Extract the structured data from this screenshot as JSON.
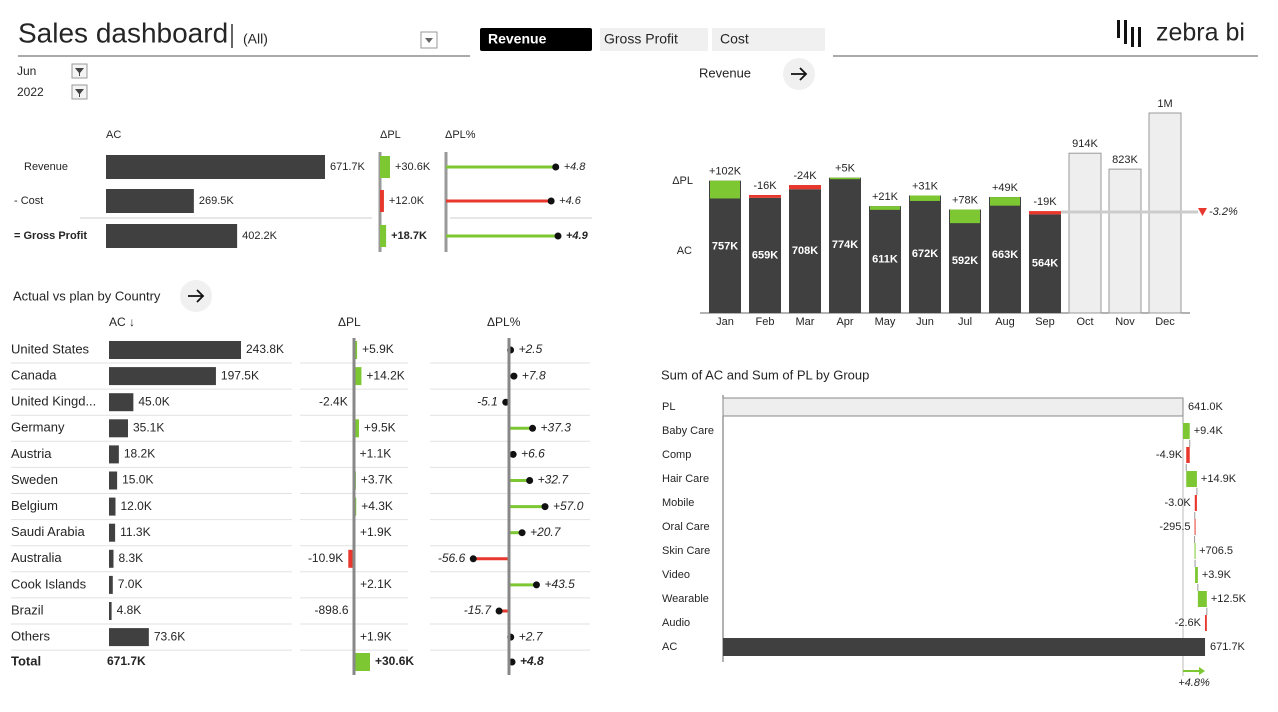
{
  "header": {
    "title": "Sales dashboard",
    "scenario": "(All)",
    "filters": [
      "Jun",
      "2022"
    ],
    "tabs": [
      "Revenue",
      "Gross Profit",
      "Cost"
    ],
    "logo": "zebra bi"
  },
  "chart_data": [
    {
      "type": "kpi-table",
      "columns": [
        "AC",
        "ΔPL",
        "ΔPL%"
      ],
      "categories": [
        "Revenue",
        "- Cost",
        "= Gross Profit"
      ],
      "series": [
        {
          "color": "#404040",
          "values": [
            671700,
            269500,
            402200
          ],
          "value_labels": [
            "671.7K",
            "269.5K",
            "402.2K"
          ]
        },
        {
          "colors": [
            "#7dc832",
            "#e8372c",
            "#7dc832"
          ],
          "values": [
            30600,
            12000,
            18700
          ],
          "value_labels": [
            "+30.6K",
            "+12.0K",
            "+18.7K"
          ]
        },
        {
          "colors": [
            "#7dc832",
            "#e8372c",
            "#7dc832"
          ],
          "values": [
            4.8,
            4.6,
            4.9
          ],
          "value_labels": [
            "+4.8",
            "+4.6",
            "+4.9"
          ]
        }
      ]
    },
    {
      "type": "column-variance",
      "title": "Revenue",
      "categories": [
        "Jan",
        "Feb",
        "Mar",
        "Apr",
        "May",
        "Jun",
        "Jul",
        "Aug",
        "Sep",
        "Oct",
        "Nov",
        "Dec"
      ],
      "ylim": [
        0,
        1144000
      ],
      "positive_color": "#7dc832",
      "negative_color": "#e8372c",
      "series": [
        {
          "name": "AC",
          "color": "#404040",
          "values": [
            757000,
            659000,
            708000,
            774000,
            611000,
            672000,
            592000,
            663000,
            564000,
            null,
            null,
            null
          ],
          "value_labels": [
            "757K",
            "659K",
            "708K",
            "774K",
            "611K",
            "672K",
            "592K",
            "663K",
            "564K",
            null,
            null,
            null
          ]
        },
        {
          "color": "#eeeeee",
          "values": [
            null,
            null,
            null,
            null,
            null,
            null,
            null,
            null,
            null,
            914000,
            823000,
            1144000
          ],
          "value_labels": [
            null,
            null,
            null,
            null,
            null,
            null,
            null,
            null,
            null,
            "914K",
            "823K",
            "1M"
          ]
        },
        {
          "name": "ΔPL",
          "values": [
            102000,
            -16000,
            -24000,
            5000,
            21000,
            31000,
            78000,
            49000,
            -19000,
            null,
            null,
            null
          ],
          "value_labels": [
            "+102K",
            "-16K",
            "-24K",
            "+5K",
            "+21K",
            "+31K",
            "+78K",
            "+49K",
            "-19K",
            null,
            null,
            null
          ]
        }
      ],
      "total": {
        "value": -3.2,
        "label": "-3.2%"
      }
    },
    {
      "type": "variance-table",
      "title": "Actual vs plan by Country",
      "columns": [
        "AC ↓",
        "ΔPL",
        "ΔPL%"
      ],
      "positive_color": "#7dc832",
      "negative_color": "#e8372c",
      "categories": [
        "United States",
        "Canada",
        "United Kingd...",
        "Germany",
        "Austria",
        "Sweden",
        "Belgium",
        "Saudi Arabia",
        "Australia",
        "Cook Islands",
        "Brazil",
        "Others"
      ],
      "series": [
        {
          "color": "#404040",
          "values": [
            243800,
            197500,
            45000,
            35100,
            18200,
            15000,
            12000,
            11300,
            8300,
            7000,
            4800,
            73600
          ],
          "value_labels": [
            "243.8K",
            "197.5K",
            "45.0K",
            "35.1K",
            "18.2K",
            "15.0K",
            "12.0K",
            "11.3K",
            "8.3K",
            "7.0K",
            "4.8K",
            "73.6K"
          ]
        },
        {
          "values": [
            5900,
            14200,
            -2400,
            9500,
            1100,
            3700,
            4300,
            1900,
            -10900,
            2100,
            -898.6,
            1900
          ],
          "value_labels": [
            "+5.9K",
            "+14.2K",
            "-2.4K",
            "+9.5K",
            "+1.1K",
            "+3.7K",
            "+4.3K",
            "+1.9K",
            "-10.9K",
            "+2.1K",
            "-898.6",
            "+1.9K"
          ]
        },
        {
          "values": [
            2.5,
            7.8,
            -5.1,
            37.3,
            6.6,
            32.7,
            57.0,
            20.7,
            -56.6,
            43.5,
            -15.7,
            2.7
          ],
          "value_labels": [
            "+2.5",
            "+7.8",
            "-5.1",
            "+37.3",
            "+6.6",
            "+32.7",
            "+57.0",
            "+20.7",
            "-56.6",
            "+43.5",
            "-15.7",
            "+2.7"
          ]
        }
      ],
      "total": {
        "label": "Total",
        "values": [
          671700,
          30600,
          4.8
        ],
        "value_labels": [
          "671.7K",
          "+30.6K",
          "+4.8"
        ]
      }
    },
    {
      "type": "waterfall",
      "title": "Sum of AC and Sum of PL by Group",
      "categories": [
        "PL",
        "Baby Care",
        "Comp",
        "Hair Care",
        "Mobile",
        "Oral Care",
        "Skin Care",
        "Video",
        "Wearable",
        "Audio",
        "AC"
      ],
      "values": [
        641000,
        9400,
        -4900,
        14900,
        -3000,
        -295.5,
        706.5,
        3900,
        12500,
        -2600,
        671700
      ],
      "value_labels": [
        "641.0K",
        "+9.4K",
        "-4.9K",
        "+14.9K",
        "-3.0K",
        "-295.5",
        "+706.5",
        "+3.9K",
        "+12.5K",
        "-2.6K",
        "671.7K"
      ],
      "positive_color": "#7dc832",
      "negative_color": "#e8372c",
      "plan_color": "#eeeeee",
      "ac_color": "#404040",
      "total": {
        "value": 4.8,
        "label": "+4.8%"
      }
    }
  ]
}
